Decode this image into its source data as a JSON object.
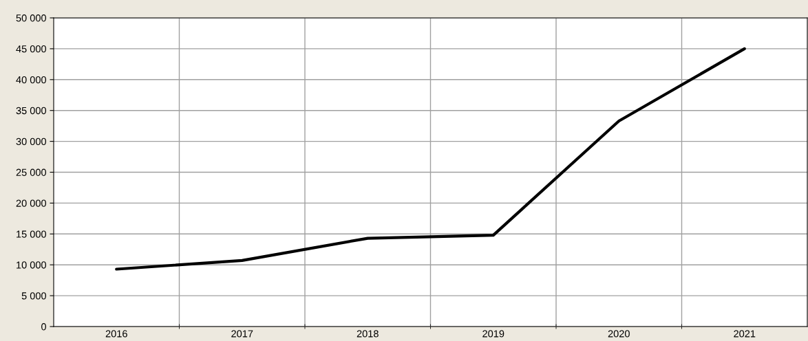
{
  "chart_data": {
    "type": "line",
    "categories": [
      "2016",
      "2017",
      "2018",
      "2019",
      "2020",
      "2021"
    ],
    "series": [
      {
        "color": "#000000",
        "values": [
          9300,
          10700,
          14300,
          14800,
          33300,
          45000
        ]
      }
    ],
    "ylim": [
      0,
      50000
    ],
    "yticks": [
      0,
      {
        "value": 5000,
        "label": "5 000"
      },
      {
        "value": 10000,
        "label": "10 000"
      },
      {
        "value": 15000,
        "label": "15 000"
      },
      {
        "value": 20000,
        "label": "20 000"
      },
      {
        "value": 25000,
        "label": "25 000"
      },
      {
        "value": 30000,
        "label": "30 000"
      },
      {
        "value": 35000,
        "label": "35 000"
      },
      {
        "value": 40000,
        "label": "40 000"
      },
      {
        "value": 45000,
        "label": "45 000"
      },
      {
        "value": 50000,
        "label": "50 000"
      }
    ],
    "grid": true,
    "marker": "none",
    "line_style": "solid"
  }
}
